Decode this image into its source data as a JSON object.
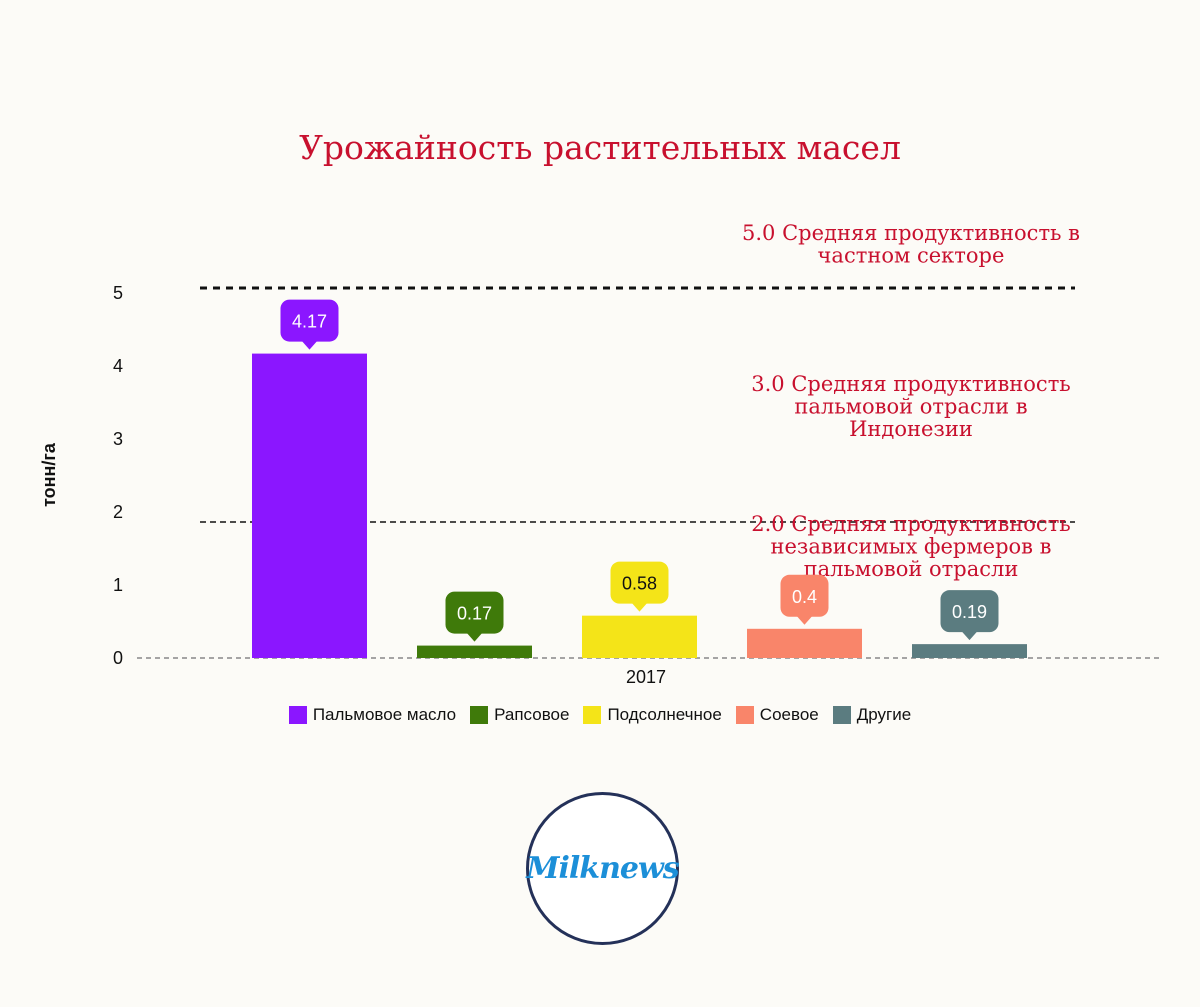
{
  "chart_data": {
    "type": "bar",
    "title": "Урожайность растительных масел",
    "xlabel": "",
    "ylabel": "тонн/га",
    "ylim": [
      0,
      5
    ],
    "yticks": [
      "0",
      "1",
      "2",
      "3",
      "4",
      "5"
    ],
    "category": "2017",
    "series": [
      {
        "name": "Пальмовое масло",
        "value": 4.17,
        "label": "4.17",
        "color": "#8b16ff"
      },
      {
        "name": "Рапсовое",
        "value": 0.17,
        "label": "0.17",
        "color": "#3f7a0a"
      },
      {
        "name": "Подсолнечное",
        "value": 0.58,
        "label": "0.58",
        "color": "#f4e418"
      },
      {
        "name": "Соевое",
        "value": 0.4,
        "label": "0.4",
        "color": "#f9856a"
      },
      {
        "name": "Другие",
        "value": 0.19,
        "label": "0.19",
        "color": "#5b7c80"
      }
    ],
    "reference_lines": [
      {
        "value": 5.0,
        "label_lines": [
          "5.0  Средняя продуктивность в",
          "частном секторе"
        ]
      },
      {
        "value": 2.0,
        "label_lines": [
          "2.0   Средняя продуктивность",
          "независимых фермеров в",
          "пальмовой отрасли"
        ]
      }
    ],
    "annotations": [
      {
        "label_lines": [
          "3.0   Средняя продуктивность",
          "пальмовой отрасли в",
          "Индонезии"
        ]
      }
    ],
    "legend_position": "bottom",
    "grid": false
  },
  "logo": {
    "text": "Milknews"
  }
}
